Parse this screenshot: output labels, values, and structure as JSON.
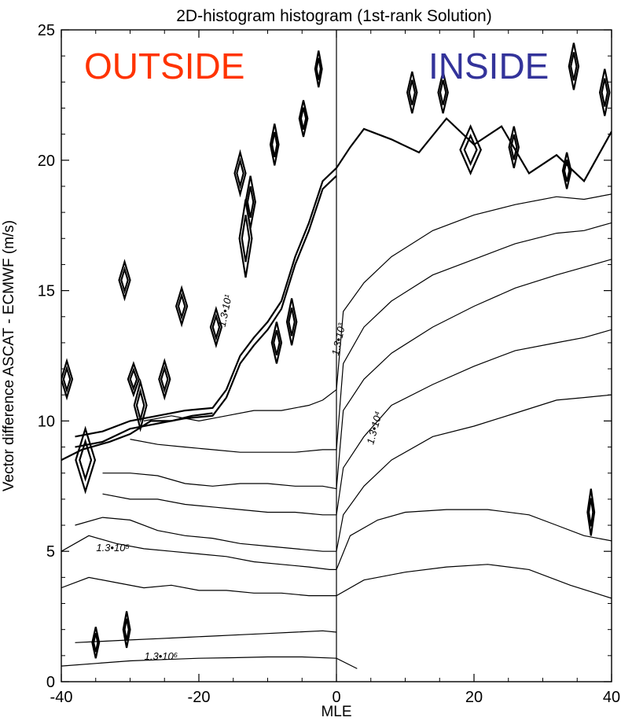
{
  "chart_data": {
    "type": "heatmap",
    "subtype": "contour",
    "title": "2D-histogram histogram (1st-rank Solution)",
    "xlabel": "MLE",
    "ylabel": "Vector difference ASCAT - ECMWF (m/s)",
    "xlim": [
      -40,
      40
    ],
    "ylim": [
      0,
      25
    ],
    "x_ticks": [
      -40,
      -20,
      0,
      20,
      40
    ],
    "x_tick_labels": [
      "-40",
      "-20",
      "0",
      "20",
      "40"
    ],
    "y_ticks": [
      0,
      5,
      10,
      15,
      20,
      25
    ],
    "y_tick_labels": [
      "0",
      "5",
      "10",
      "15",
      "20",
      "25"
    ],
    "grid": false,
    "annotations": {
      "outside": {
        "text": "OUTSIDE",
        "color": "#ff3300"
      },
      "inside": {
        "text": "INSIDE",
        "color": "#33339a"
      }
    },
    "contour_level_labels": [
      {
        "text": "1.3•10¹",
        "level": 13,
        "x": -15.7,
        "y": 14.2,
        "angle": -78
      },
      {
        "text": "1.3•10³",
        "level": 1300,
        "x": 0.8,
        "y": 13.1,
        "angle": -78
      },
      {
        "text": "1.3•10⁴",
        "level": 13000,
        "x": 6.0,
        "y": 9.7,
        "angle": -75
      },
      {
        "text": "1.3•10⁵",
        "level": 130000,
        "x": -32.5,
        "y": 5.0,
        "angle": 0
      },
      {
        "text": "1.3•10⁶",
        "level": 1300000,
        "x": -25.5,
        "y": 0.85,
        "angle": 0
      }
    ],
    "contours": [
      {
        "level": 1300000,
        "style": "thin",
        "points": [
          [
            -38,
            1.5
          ],
          [
            -34,
            1.55
          ],
          [
            -30,
            1.6
          ],
          [
            -26,
            1.65
          ],
          [
            -22,
            1.7
          ],
          [
            -18,
            1.75
          ],
          [
            -14,
            1.8
          ],
          [
            -10,
            1.85
          ],
          [
            -6,
            1.9
          ],
          [
            -2,
            1.95
          ],
          [
            0,
            1.9
          ]
        ]
      },
      {
        "level": 1300000,
        "style": "thin",
        "points": [
          [
            -40,
            0.6
          ],
          [
            -35,
            0.7
          ],
          [
            -30,
            0.8
          ],
          [
            -25,
            0.85
          ],
          [
            -20,
            0.9
          ],
          [
            -15,
            0.92
          ],
          [
            -10,
            0.95
          ],
          [
            -5,
            0.95
          ],
          [
            0,
            0.9
          ],
          [
            3,
            0.5
          ]
        ]
      },
      {
        "level": 130000,
        "style": "thin",
        "points": [
          [
            -40,
            3.6
          ],
          [
            -36,
            4.0
          ],
          [
            -32,
            3.8
          ],
          [
            -28,
            3.6
          ],
          [
            -24,
            3.7
          ],
          [
            -20,
            3.5
          ],
          [
            -16,
            3.5
          ],
          [
            -12,
            3.4
          ],
          [
            -8,
            3.4
          ],
          [
            -4,
            3.3
          ],
          [
            0,
            3.3
          ],
          [
            4,
            3.9
          ],
          [
            10,
            4.2
          ],
          [
            16,
            4.4
          ],
          [
            22,
            4.5
          ],
          [
            28,
            4.3
          ],
          [
            34,
            3.7
          ],
          [
            40,
            3.2
          ]
        ]
      },
      {
        "level": 130000,
        "style": "thin",
        "points": [
          [
            -40,
            5.0
          ],
          [
            -36,
            5.6
          ],
          [
            -32,
            5.3
          ],
          [
            -28,
            5.1
          ],
          [
            -24,
            5.0
          ],
          [
            -20,
            4.9
          ],
          [
            -16,
            4.8
          ],
          [
            -12,
            4.6
          ],
          [
            -8,
            4.5
          ],
          [
            -4,
            4.4
          ],
          [
            -1,
            4.3
          ],
          [
            0,
            4.3
          ],
          [
            2,
            5.6
          ],
          [
            6,
            6.2
          ],
          [
            10,
            6.5
          ],
          [
            16,
            6.6
          ],
          [
            22,
            6.6
          ],
          [
            28,
            6.4
          ],
          [
            32,
            6.0
          ],
          [
            36,
            5.6
          ],
          [
            40,
            5.4
          ]
        ]
      },
      {
        "level": 13000,
        "style": "thin",
        "points": [
          [
            -38,
            6.0
          ],
          [
            -34,
            6.3
          ],
          [
            -30,
            6.2
          ],
          [
            -26,
            5.8
          ],
          [
            -22,
            5.6
          ],
          [
            -18,
            5.5
          ],
          [
            -14,
            5.3
          ],
          [
            -10,
            5.2
          ],
          [
            -6,
            5.1
          ],
          [
            -2,
            5.0
          ],
          [
            0,
            5.0
          ],
          [
            1,
            6.4
          ],
          [
            4,
            7.5
          ],
          [
            8,
            8.5
          ],
          [
            14,
            9.4
          ],
          [
            20,
            9.8
          ],
          [
            26,
            10.3
          ],
          [
            32,
            10.8
          ],
          [
            36,
            10.9
          ],
          [
            40,
            11.0
          ]
        ]
      },
      {
        "level": 13000,
        "style": "thin",
        "points": [
          [
            -34,
            7.2
          ],
          [
            -30,
            7.0
          ],
          [
            -26,
            7.0
          ],
          [
            -22,
            6.8
          ],
          [
            -18,
            6.7
          ],
          [
            -14,
            6.6
          ],
          [
            -10,
            6.5
          ],
          [
            -6,
            6.5
          ],
          [
            -2,
            6.4
          ],
          [
            0,
            6.4
          ],
          [
            1,
            8.2
          ],
          [
            4,
            9.4
          ],
          [
            8,
            10.6
          ],
          [
            14,
            11.4
          ],
          [
            20,
            12.1
          ],
          [
            26,
            12.7
          ],
          [
            32,
            13.0
          ],
          [
            36,
            13.2
          ],
          [
            40,
            13.5
          ]
        ]
      },
      {
        "level": 1300,
        "style": "thin",
        "points": [
          [
            -34,
            8.0
          ],
          [
            -30,
            8.0
          ],
          [
            -26,
            7.9
          ],
          [
            -22,
            7.6
          ],
          [
            -18,
            7.5
          ],
          [
            -14,
            7.6
          ],
          [
            -10,
            7.6
          ],
          [
            -6,
            7.5
          ],
          [
            -2,
            7.5
          ],
          [
            0,
            7.4
          ],
          [
            1,
            10.4
          ],
          [
            4,
            11.6
          ],
          [
            8,
            12.6
          ],
          [
            14,
            13.6
          ],
          [
            20,
            14.4
          ],
          [
            26,
            15.1
          ],
          [
            32,
            15.6
          ],
          [
            36,
            15.9
          ],
          [
            40,
            16.2
          ]
        ]
      },
      {
        "level": 1300,
        "style": "thin",
        "points": [
          [
            -30,
            9.3
          ],
          [
            -26,
            9.1
          ],
          [
            -22,
            9.0
          ],
          [
            -18,
            8.9
          ],
          [
            -14,
            8.8
          ],
          [
            -10,
            8.8
          ],
          [
            -6,
            8.8
          ],
          [
            -2,
            8.9
          ],
          [
            0,
            8.9
          ],
          [
            1,
            12.2
          ],
          [
            4,
            13.6
          ],
          [
            8,
            14.6
          ],
          [
            14,
            15.6
          ],
          [
            20,
            16.2
          ],
          [
            26,
            16.8
          ],
          [
            32,
            17.2
          ],
          [
            36,
            17.3
          ],
          [
            40,
            17.6
          ]
        ]
      },
      {
        "level": 130,
        "style": "thin",
        "points": [
          [
            -28,
            10.0
          ],
          [
            -24,
            10.2
          ],
          [
            -20,
            10.0
          ],
          [
            -16,
            10.2
          ],
          [
            -12,
            10.4
          ],
          [
            -8,
            10.4
          ],
          [
            -4,
            10.6
          ],
          [
            -2,
            10.8
          ],
          [
            0,
            11.2
          ],
          [
            1,
            14.2
          ],
          [
            4,
            15.3
          ],
          [
            8,
            16.3
          ],
          [
            14,
            17.3
          ],
          [
            20,
            17.9
          ],
          [
            26,
            18.3
          ],
          [
            32,
            18.6
          ],
          [
            36,
            18.5
          ],
          [
            40,
            18.7
          ]
        ]
      },
      {
        "level": 13,
        "style": "bold",
        "points": [
          [
            -38,
            9.4
          ],
          [
            -34,
            9.6
          ],
          [
            -30,
            10.0
          ],
          [
            -26,
            10.2
          ],
          [
            -22,
            10.4
          ],
          [
            -18,
            10.5
          ],
          [
            -16,
            11.2
          ],
          [
            -14,
            12.5
          ],
          [
            -12,
            13.2
          ],
          [
            -10,
            13.8
          ],
          [
            -8,
            14.6
          ],
          [
            -6,
            16.3
          ],
          [
            -4,
            17.6
          ],
          [
            -2,
            19.2
          ],
          [
            0,
            19.7
          ],
          [
            2,
            20.5
          ],
          [
            4,
            21.2
          ],
          [
            8,
            20.8
          ],
          [
            12,
            20.3
          ],
          [
            16,
            21.6
          ],
          [
            20,
            20.6
          ],
          [
            24,
            21.3
          ],
          [
            28,
            19.5
          ],
          [
            32,
            20.2
          ],
          [
            36,
            19.2
          ],
          [
            40,
            21.1
          ]
        ]
      },
      {
        "level": 13,
        "style": "bold",
        "points": [
          [
            -38,
            9.0
          ],
          [
            -34,
            9.2
          ],
          [
            -30,
            9.7
          ],
          [
            -26,
            9.9
          ],
          [
            -22,
            10.1
          ],
          [
            -18,
            10.2
          ],
          [
            -16,
            10.9
          ],
          [
            -14,
            12.2
          ],
          [
            -12,
            12.9
          ],
          [
            -10,
            13.5
          ],
          [
            -8,
            14.3
          ],
          [
            -6,
            16.0
          ],
          [
            -4,
            17.3
          ],
          [
            -2,
            18.9
          ],
          [
            0,
            19.4
          ]
        ]
      },
      {
        "level": 13,
        "style": "bold",
        "points": [
          [
            -40,
            8.5
          ],
          [
            -37,
            8.9
          ],
          [
            -33,
            9.2
          ],
          [
            -30,
            9.5
          ],
          [
            -27,
            10.0
          ],
          [
            -24,
            10.0
          ],
          [
            -21,
            10.2
          ],
          [
            -18,
            10.3
          ]
        ]
      }
    ],
    "islands": [
      {
        "x": -39.2,
        "y": 11.6,
        "rx": 0.8,
        "ry": 0.7
      },
      {
        "x": -36.5,
        "y": 8.5,
        "rx": 1.4,
        "ry": 1.2
      },
      {
        "x": -30.8,
        "y": 15.4,
        "rx": 0.8,
        "ry": 0.7
      },
      {
        "x": -29.5,
        "y": 11.6,
        "rx": 0.8,
        "ry": 0.6
      },
      {
        "x": -28.5,
        "y": 10.6,
        "rx": 0.9,
        "ry": 0.9
      },
      {
        "x": -25.0,
        "y": 11.6,
        "rx": 0.8,
        "ry": 0.7
      },
      {
        "x": -22.5,
        "y": 14.4,
        "rx": 0.8,
        "ry": 0.7
      },
      {
        "x": -17.5,
        "y": 13.6,
        "rx": 0.8,
        "ry": 0.7
      },
      {
        "x": -14.0,
        "y": 19.5,
        "rx": 0.8,
        "ry": 0.8
      },
      {
        "x": -12.5,
        "y": 18.4,
        "rx": 0.7,
        "ry": 1.0
      },
      {
        "x": -13.2,
        "y": 17.0,
        "rx": 0.9,
        "ry": 1.5
      },
      {
        "x": -9.0,
        "y": 20.6,
        "rx": 0.6,
        "ry": 0.8
      },
      {
        "x": -8.7,
        "y": 13.0,
        "rx": 0.7,
        "ry": 0.8
      },
      {
        "x": -6.5,
        "y": 13.8,
        "rx": 0.7,
        "ry": 0.9
      },
      {
        "x": -4.8,
        "y": 21.6,
        "rx": 0.6,
        "ry": 0.7
      },
      {
        "x": -2.6,
        "y": 23.5,
        "rx": 0.5,
        "ry": 0.7
      },
      {
        "x": 11.0,
        "y": 22.6,
        "rx": 0.7,
        "ry": 0.8
      },
      {
        "x": 15.5,
        "y": 22.6,
        "rx": 0.7,
        "ry": 0.8
      },
      {
        "x": 19.5,
        "y": 20.4,
        "rx": 1.5,
        "ry": 0.9
      },
      {
        "x": 25.8,
        "y": 20.5,
        "rx": 0.7,
        "ry": 0.8
      },
      {
        "x": 34.5,
        "y": 23.6,
        "rx": 0.7,
        "ry": 0.9
      },
      {
        "x": 39.0,
        "y": 22.6,
        "rx": 0.7,
        "ry": 0.9
      },
      {
        "x": 33.5,
        "y": 19.6,
        "rx": 0.6,
        "ry": 0.7
      },
      {
        "x": -35.0,
        "y": 1.5,
        "rx": 0.5,
        "ry": 0.6
      },
      {
        "x": -30.5,
        "y": 2.0,
        "rx": 0.5,
        "ry": 0.7
      },
      {
        "x": 37.0,
        "y": 6.5,
        "rx": 0.5,
        "ry": 0.9
      }
    ]
  }
}
